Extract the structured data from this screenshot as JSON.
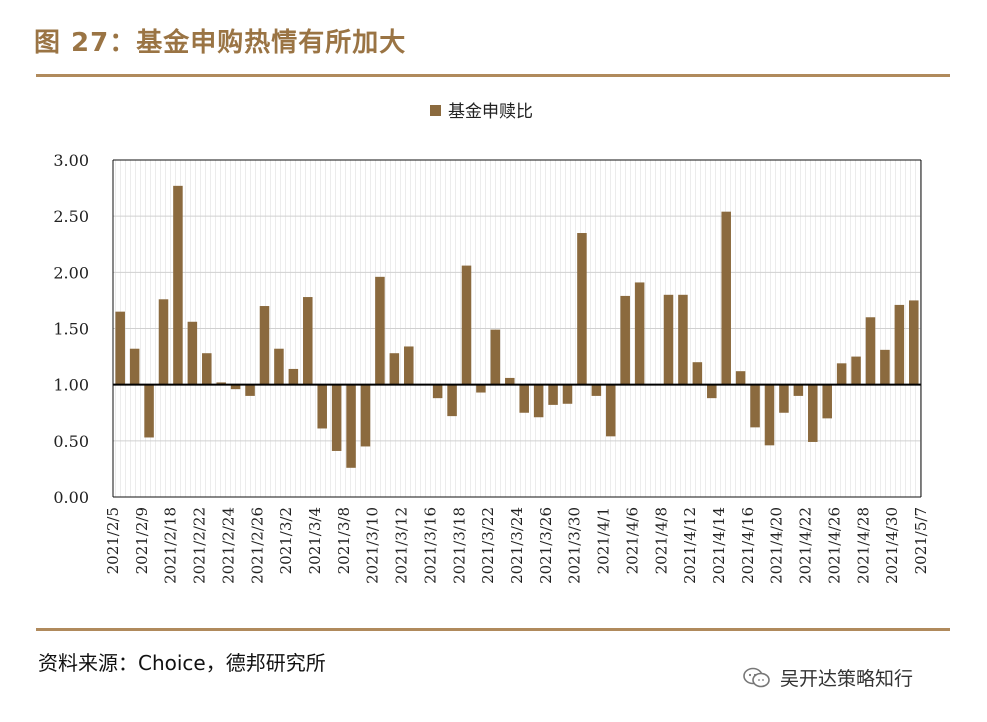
{
  "header": {
    "title": "图 27：基金申购热情有所加大"
  },
  "footer": {
    "source": "资料来源：Choice，德邦研究所"
  },
  "watermark": {
    "text": "吴开达策略知行",
    "icon": "wechat-icon"
  },
  "colors": {
    "accent": "#9a7444",
    "bar": "#8b6a3e",
    "rule": "#b08a5c"
  },
  "chart_data": {
    "type": "bar",
    "title": "",
    "legend": [
      "基金申赎比"
    ],
    "legend_position": "top-center",
    "xlabel": "",
    "ylabel": "",
    "ylim": [
      0,
      3
    ],
    "yticks": [
      "0.00",
      "0.50",
      "1.00",
      "1.50",
      "2.00",
      "2.50",
      "3.00"
    ],
    "baseline": 1.0,
    "grid": true,
    "xtick_labels": [
      "2021/2/5",
      "2021/2/9",
      "2021/2/18",
      "2021/2/22",
      "2021/2/24",
      "2021/2/26",
      "2021/3/2",
      "2021/3/4",
      "2021/3/8",
      "2021/3/10",
      "2021/3/12",
      "2021/3/16",
      "2021/3/18",
      "2021/3/22",
      "2021/3/24",
      "2021/3/26",
      "2021/3/30",
      "2021/4/1",
      "2021/4/6",
      "2021/4/8",
      "2021/4/12",
      "2021/4/14",
      "2021/4/16",
      "2021/4/20",
      "2021/4/22",
      "2021/4/26",
      "2021/4/28",
      "2021/4/30",
      "2021/5/7"
    ],
    "series": [
      {
        "name": "基金申赎比",
        "values": [
          1.65,
          1.32,
          0.53,
          1.76,
          2.77,
          1.56,
          1.28,
          1.02,
          0.96,
          0.9,
          1.7,
          1.32,
          1.14,
          1.78,
          0.61,
          0.41,
          0.26,
          0.45,
          1.96,
          1.28,
          1.34,
          1.0,
          0.88,
          0.72,
          2.06,
          0.93,
          1.49,
          1.06,
          0.75,
          0.71,
          0.82,
          0.83,
          2.35,
          0.9,
          0.54,
          1.79,
          1.91,
          1.0,
          1.8,
          1.8,
          1.2,
          0.88,
          2.54,
          1.12,
          0.62,
          0.46,
          0.75,
          0.9,
          0.49,
          0.7,
          1.19,
          1.25,
          1.6,
          1.31,
          1.71,
          1.75
        ]
      }
    ]
  }
}
